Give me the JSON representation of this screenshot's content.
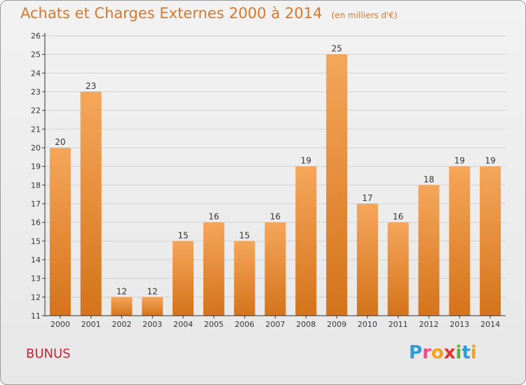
{
  "header": {
    "title": "Achats et Charges Externes 2000 à 2014",
    "unit": "(en milliers d'€)"
  },
  "footer": {
    "commune": "BUNUS",
    "brand_letters": [
      {
        "ch": "P",
        "color": "#2f9ad8"
      },
      {
        "ch": "r",
        "color": "#e94f8a"
      },
      {
        "ch": "o",
        "color": "#f3a21c"
      },
      {
        "ch": "x",
        "color": "#e2342e"
      },
      {
        "ch": "i",
        "color": "#5bb431"
      },
      {
        "ch": "t",
        "color": "#2f9ad8"
      },
      {
        "ch": "i",
        "color": "#f3a21c"
      }
    ]
  },
  "colors": {
    "bar_top": "#f5a65a",
    "bar_bottom": "#d4731b",
    "axis": "#333333",
    "grid": "#d2d2d2"
  },
  "chart_data": {
    "type": "bar",
    "categories": [
      "2000",
      "2001",
      "2002",
      "2003",
      "2004",
      "2005",
      "2006",
      "2007",
      "2008",
      "2009",
      "2010",
      "2011",
      "2012",
      "2013",
      "2014"
    ],
    "values": [
      20,
      23,
      12,
      12,
      15,
      16,
      15,
      16,
      19,
      25,
      17,
      16,
      18,
      19,
      19
    ],
    "data_labels": [
      "20",
      "23",
      "12",
      "12",
      "15",
      "16",
      "15",
      "16",
      "19",
      "25",
      "17",
      "16",
      "18",
      "19",
      "19"
    ],
    "ylim": [
      11,
      26
    ],
    "y_ticks": [
      "11",
      "12",
      "13",
      "14",
      "15",
      "16",
      "17",
      "18",
      "19",
      "20",
      "21",
      "22",
      "23",
      "24",
      "25",
      "26"
    ],
    "grid": true
  }
}
